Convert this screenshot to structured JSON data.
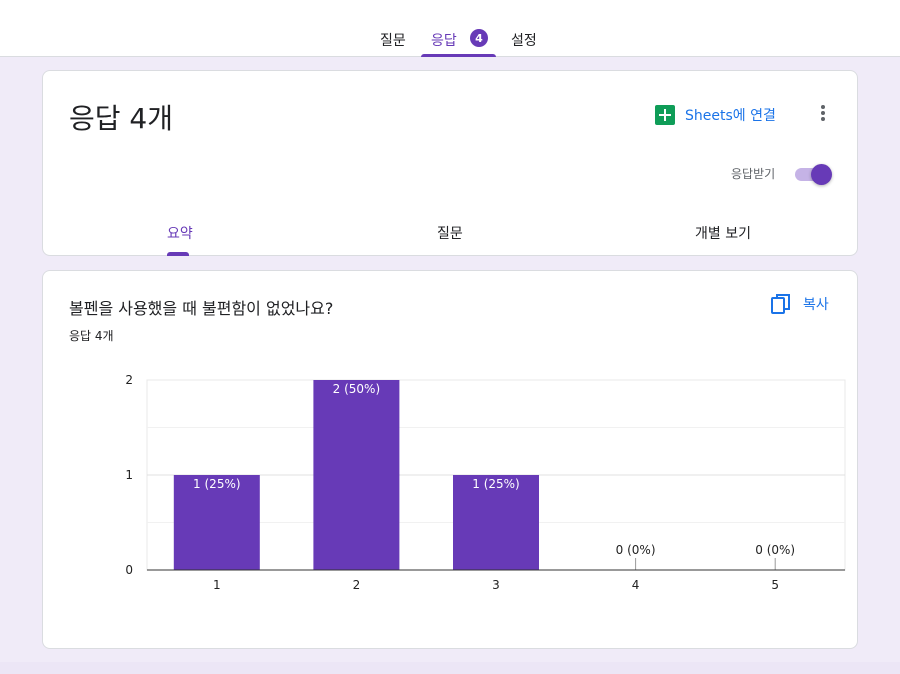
{
  "nav": {
    "tabs": [
      {
        "label": "질문"
      },
      {
        "label": "응답",
        "badge": "4"
      },
      {
        "label": "설정"
      }
    ],
    "active_index": 1
  },
  "header": {
    "title": "응답 4개",
    "sheets_label": "Sheets에 연결",
    "accept_label": "응답받기",
    "accepting": true,
    "subtabs": [
      "요약",
      "질문",
      "개별 보기"
    ]
  },
  "question": {
    "title": "볼펜을 사용했을 때 불편함이 없었나요?",
    "count": "응답 4개",
    "copy_label": "복사"
  },
  "colors": {
    "accent": "#673ab7",
    "link": "#1a73e8",
    "sheets": "#0f9d58"
  },
  "chart_data": {
    "type": "bar",
    "categories": [
      "1",
      "2",
      "3",
      "4",
      "5"
    ],
    "values": [
      1,
      2,
      1,
      0,
      0
    ],
    "data_labels": [
      "1 (25%)",
      "2 (50%)",
      "1 (25%)",
      "0 (0%)",
      "0 (0%)"
    ],
    "y_ticks": [
      "0",
      "1",
      "2"
    ],
    "ylim": [
      0,
      2
    ],
    "grid": true,
    "bar_color": "#673ab7"
  }
}
